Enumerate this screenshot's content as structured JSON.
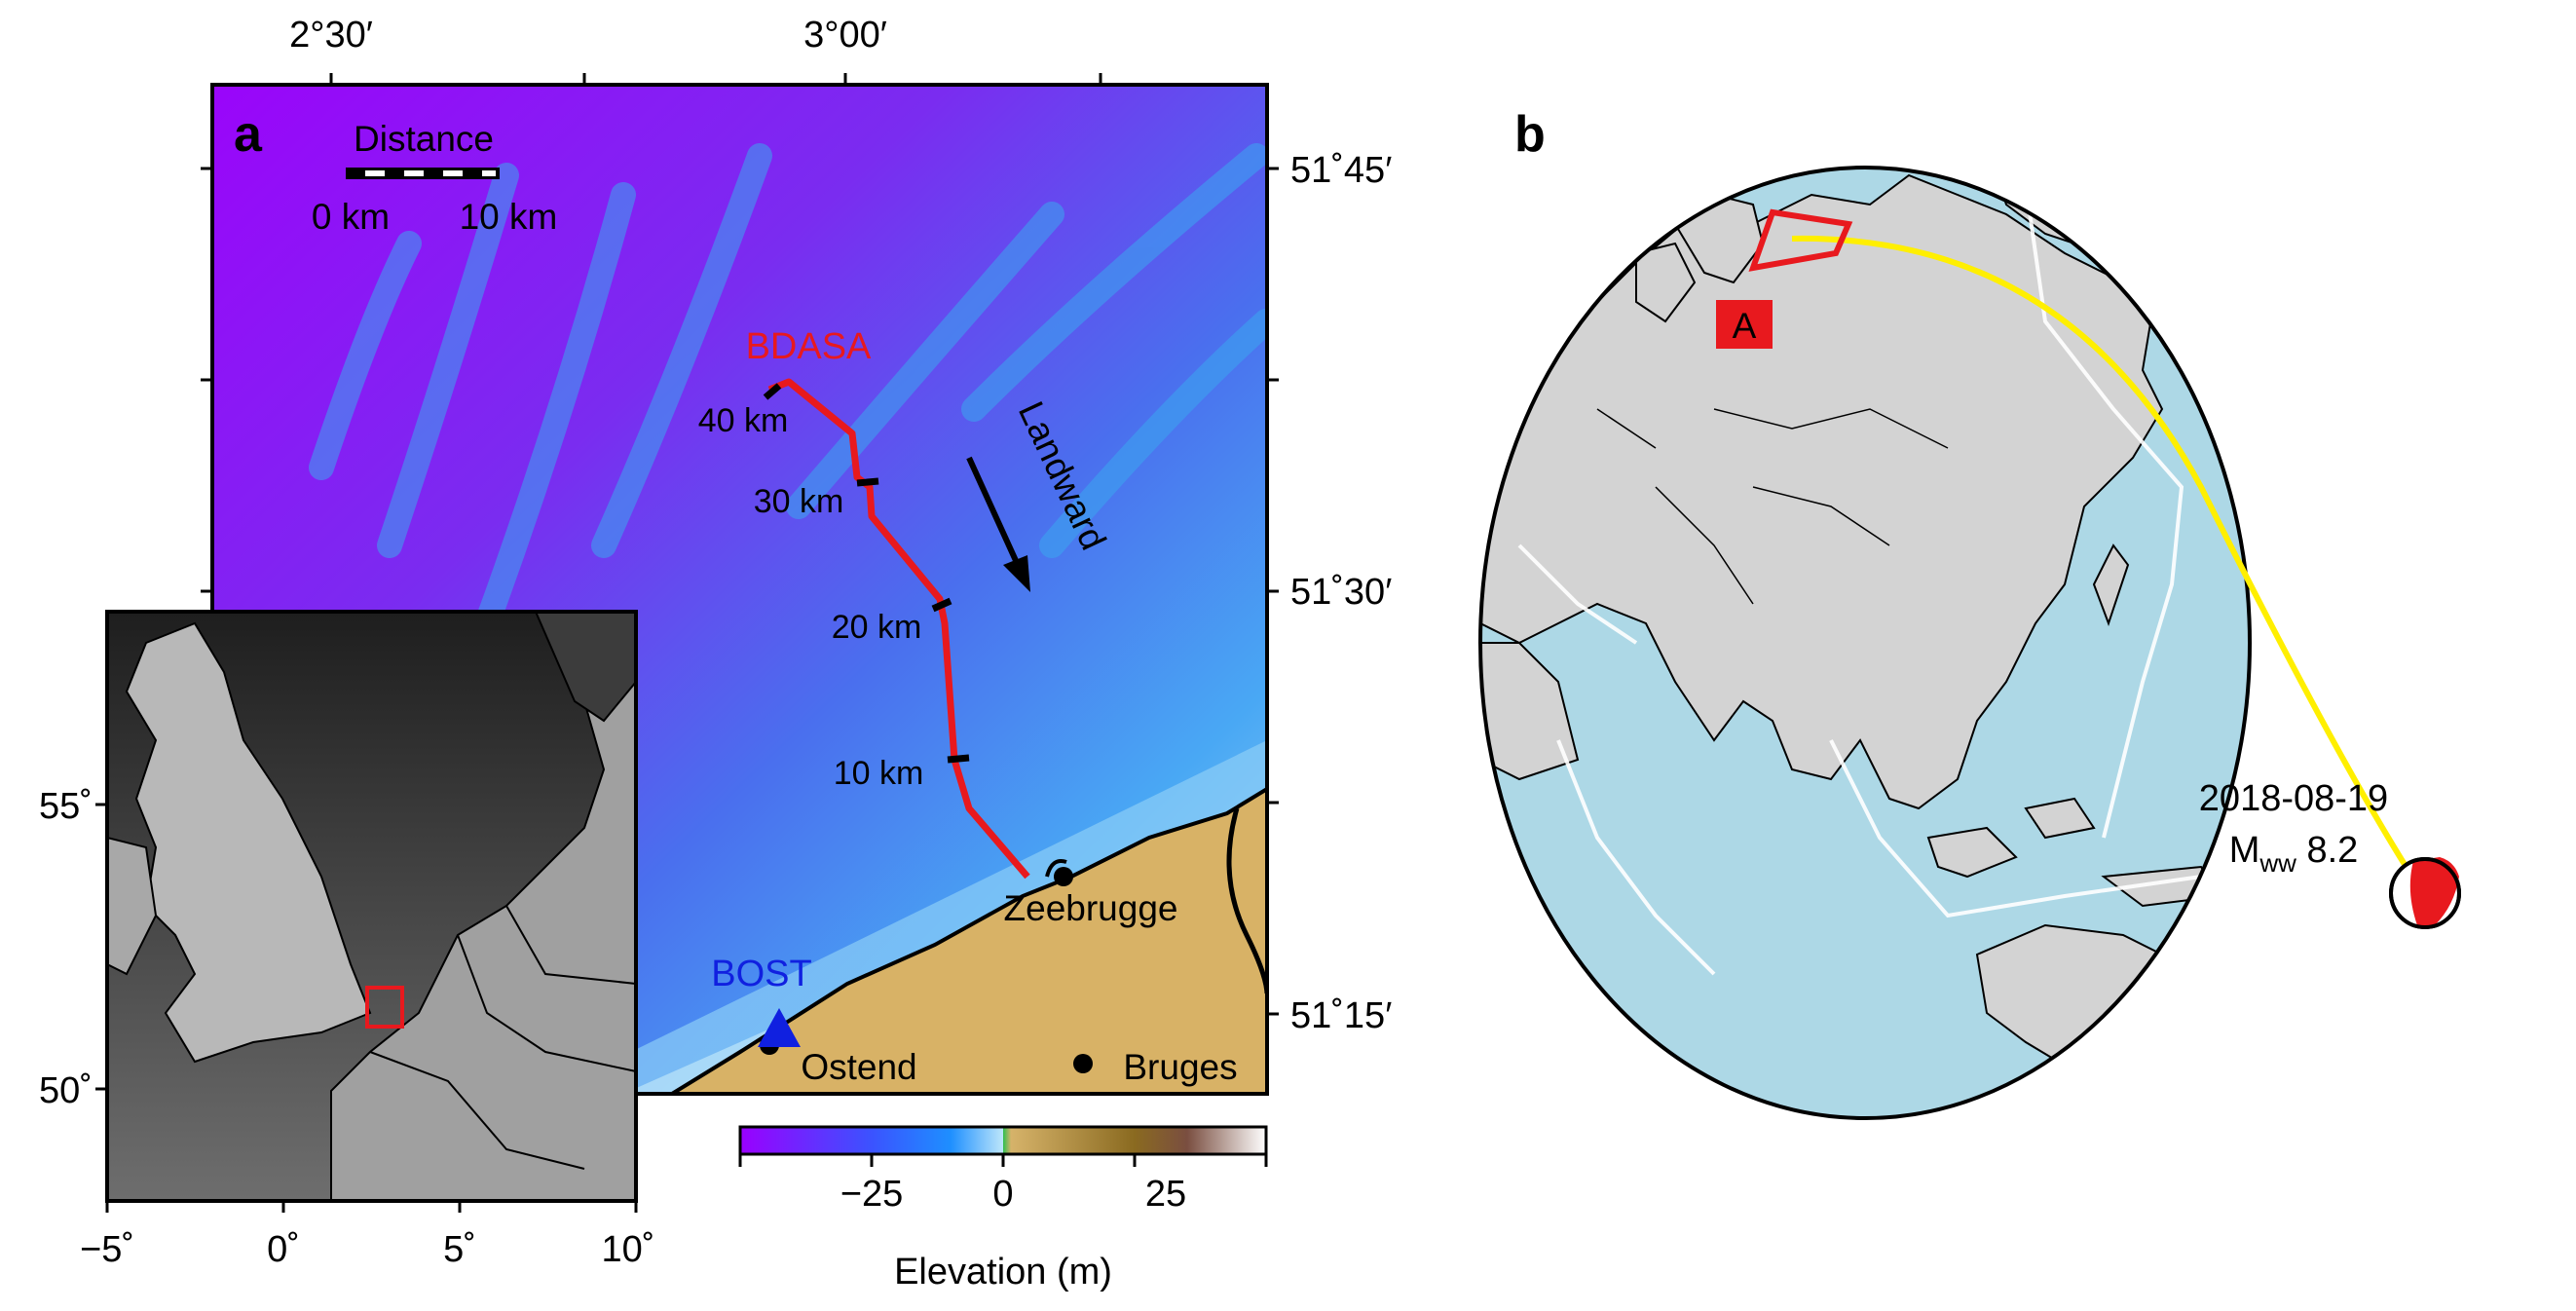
{
  "panel_a": {
    "letter": "a",
    "top_ticks": [
      "2°30′",
      "3°00′"
    ],
    "right_ticks": [
      "51˚45′",
      "51˚30′",
      "51˚15′"
    ],
    "scale_bar": {
      "title": "Distance",
      "left": "0 km",
      "right": "10 km"
    },
    "route": {
      "name": "BDASA",
      "color": "#e8191e",
      "markers": [
        "40 km",
        "30 km",
        "20 km",
        "10 km"
      ]
    },
    "direction_label": "Landward",
    "station": {
      "name": "BOST",
      "color": "#1020e0"
    },
    "cities": [
      "Zeebrugge",
      "Ostend",
      "Bruges"
    ],
    "colorbar": {
      "title": "Elevation (m)",
      "ticks": [
        "−25",
        "0",
        "25"
      ],
      "colors": [
        "#9a00ff",
        "#1e7fff",
        "#bde6fa",
        "#d2b065",
        "#8a6a20",
        "#ffffff"
      ]
    }
  },
  "inset": {
    "left_ticks": [
      "55˚",
      "50˚"
    ],
    "bottom_ticks": [
      "−5˚",
      "0˚",
      "5˚",
      "10˚"
    ],
    "box_color": "#e8191e"
  },
  "panel_b": {
    "letter": "b",
    "box_label": "A",
    "event": {
      "date": "2018-08-19",
      "mag_prefix": "M",
      "mag_sub": "ww",
      "mag_value": " 8.2"
    },
    "path_color": "#ffef00",
    "ocean_color": "#add8e6",
    "land_color": "#d3d3d3"
  }
}
